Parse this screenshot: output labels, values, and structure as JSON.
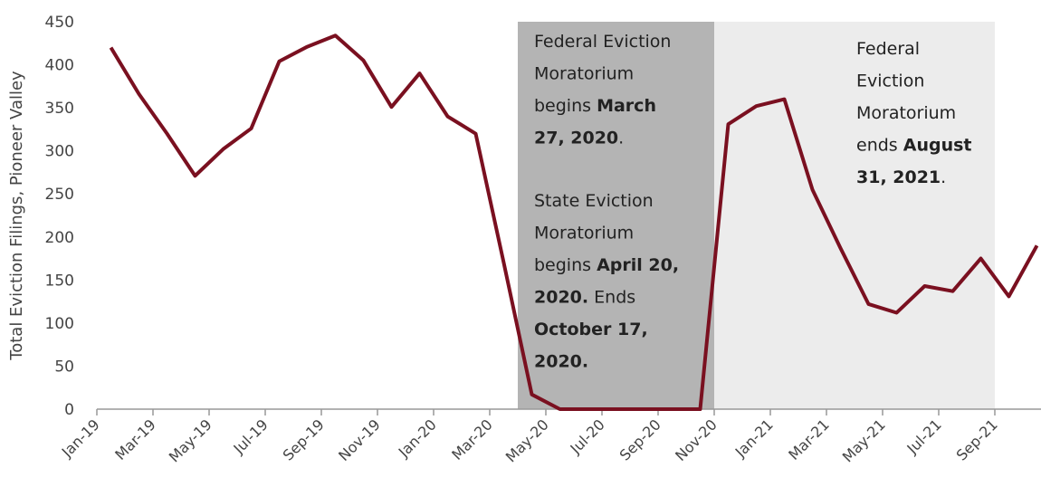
{
  "chart_data": {
    "type": "line",
    "y_label": "Total Eviction Filings, Pioneer Valley",
    "categories": [
      "Jan-19",
      null,
      "Mar-19",
      null,
      "May-19",
      null,
      "Jul-19",
      null,
      "Sep-19",
      null,
      "Nov-19",
      null,
      "Jan-20",
      null,
      "Mar-20",
      null,
      "May-20",
      null,
      "Jul-20",
      null,
      "Sep-20",
      null,
      "Nov-20",
      null,
      "Jan-21",
      null,
      "Mar-21",
      null,
      "May-21",
      null,
      "Jul-21",
      null,
      "Sep-21",
      null
    ],
    "values": [
      420,
      366,
      320,
      271,
      302,
      326,
      404,
      421,
      434,
      405,
      351,
      390,
      340,
      320,
      170,
      17,
      0,
      0,
      0,
      0,
      0,
      0,
      331,
      352,
      360,
      255,
      187,
      122,
      112,
      143,
      137,
      175,
      131,
      190
    ],
    "color": "#7a1020",
    "ylim": [
      0,
      450
    ],
    "yticks": [
      0,
      50,
      100,
      150,
      200,
      250,
      300,
      350,
      400,
      450
    ],
    "grid": false,
    "annotations": [
      {
        "lines": [
          [
            {
              "text": "Federal Eviction"
            }
          ],
          [
            {
              "text": "Moratorium"
            }
          ],
          [
            {
              "text": "begins "
            },
            {
              "text": "March",
              "bold": true
            }
          ],
          [
            {
              "text": "27, 2020",
              "bold": true
            },
            {
              "text": "."
            }
          ]
        ]
      },
      {
        "lines": [
          [
            {
              "text": "State Eviction"
            }
          ],
          [
            {
              "text": "Moratorium"
            }
          ],
          [
            {
              "text": "begins "
            },
            {
              "text": "April 20,",
              "bold": true
            }
          ],
          [
            {
              "text": "2020.",
              "bold": true
            },
            {
              "text": " Ends"
            }
          ],
          [
            {
              "text": "October 17,",
              "bold": true
            }
          ],
          [
            {
              "text": "2020.",
              "bold": true
            }
          ]
        ]
      },
      {
        "lines": [
          [
            {
              "text": "Federal"
            }
          ],
          [
            {
              "text": "Eviction"
            }
          ],
          [
            {
              "text": "Moratorium"
            }
          ],
          [
            {
              "text": "ends "
            },
            {
              "text": "August",
              "bold": true
            }
          ],
          [
            {
              "text": "31, 2021",
              "bold": true
            },
            {
              "text": "."
            }
          ]
        ]
      }
    ]
  }
}
